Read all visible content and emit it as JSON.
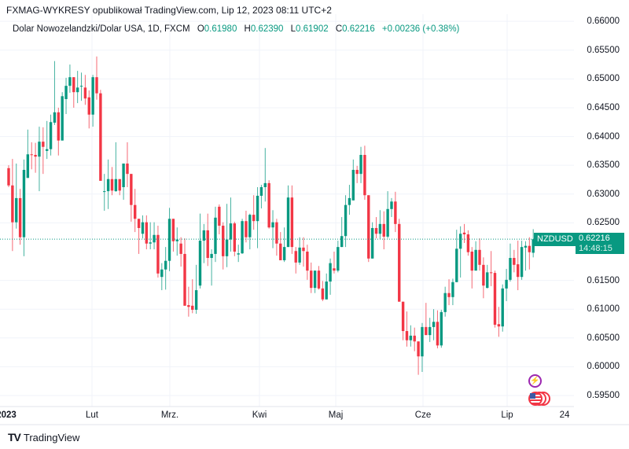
{
  "header": {
    "published": "FXMAG-WYKRESY opublikował TradingView.com, Lip 12, 2023 08:11 UTC+2"
  },
  "legend": {
    "instrument": "Dolar Nowozelandzki/Dolar USA, 1D, FXCM",
    "o_label": "O",
    "o": "0.61980",
    "h_label": "H",
    "h": "0.62390",
    "l_label": "L",
    "l": "0.61902",
    "c_label": "C",
    "c": "0.62216",
    "change": "+0.00236 (+0.38%)"
  },
  "price_label": {
    "symbol": "NZDUSD",
    "price": "0.62216",
    "countdown": "14:48:15"
  },
  "footer": {
    "brand": "TradingView"
  },
  "icons": [
    "tradingview-logo-icon",
    "lightning-event-icon",
    "us-flag-event-icon"
  ],
  "colors": {
    "up": "#089981",
    "down": "#f23645",
    "grid": "#f0f3fa"
  },
  "chart_data": {
    "type": "candlestick",
    "title": "",
    "y_ticks": [
      "0.66000",
      "0.65500",
      "0.65000",
      "0.64500",
      "0.64000",
      "0.63500",
      "0.63000",
      "0.62500",
      "0.61500",
      "0.61000",
      "0.60500",
      "0.60000",
      "0.59500"
    ],
    "x_ticks": [
      "2023",
      "Lut",
      "Mrz.",
      "Kwi",
      "Maj",
      "Cze",
      "Lip",
      "24"
    ],
    "ylim": [
      0.5932,
      0.6637
    ],
    "grid": true,
    "last_price": 0.62216,
    "ohlc": [
      [
        0.6345,
        0.635,
        0.6312,
        0.6315
      ],
      [
        0.6315,
        0.6361,
        0.6201,
        0.6251
      ],
      [
        0.6251,
        0.6353,
        0.624,
        0.6293
      ],
      [
        0.6293,
        0.6309,
        0.6212,
        0.6225
      ],
      [
        0.6225,
        0.636,
        0.6192,
        0.6342
      ],
      [
        0.6328,
        0.6412,
        0.6328,
        0.6369
      ],
      [
        0.6369,
        0.639,
        0.6343,
        0.6368
      ],
      [
        0.6368,
        0.6389,
        0.6337,
        0.6365
      ],
      [
        0.6365,
        0.6417,
        0.6305,
        0.6391
      ],
      [
        0.6391,
        0.6416,
        0.6335,
        0.6382
      ],
      [
        0.6375,
        0.6427,
        0.6361,
        0.6378
      ],
      [
        0.6378,
        0.6438,
        0.6367,
        0.6425
      ],
      [
        0.6424,
        0.6531,
        0.642,
        0.6442
      ],
      [
        0.6442,
        0.645,
        0.6367,
        0.6393
      ],
      [
        0.6393,
        0.6477,
        0.6393,
        0.647
      ],
      [
        0.6465,
        0.6502,
        0.6439,
        0.6488
      ],
      [
        0.6488,
        0.6525,
        0.6476,
        0.6503
      ],
      [
        0.6503,
        0.6503,
        0.645,
        0.6477
      ],
      [
        0.6477,
        0.6514,
        0.6458,
        0.6485
      ],
      [
        0.6487,
        0.6511,
        0.6462,
        0.6488
      ],
      [
        0.6485,
        0.6507,
        0.6455,
        0.6466
      ],
      [
        0.6468,
        0.648,
        0.6414,
        0.6438
      ],
      [
        0.6438,
        0.6507,
        0.6417,
        0.6503
      ],
      [
        0.6503,
        0.6539,
        0.6464,
        0.6475
      ],
      [
        0.6475,
        0.6481,
        0.6323,
        0.6323
      ],
      [
        0.6304,
        0.6335,
        0.6271,
        0.6305
      ],
      [
        0.6305,
        0.636,
        0.6274,
        0.6326
      ],
      [
        0.6326,
        0.6347,
        0.6298,
        0.6306
      ],
      [
        0.6305,
        0.639,
        0.6304,
        0.6326
      ],
      [
        0.6326,
        0.6326,
        0.6298,
        0.6306
      ],
      [
        0.6312,
        0.6353,
        0.629,
        0.6353
      ],
      [
        0.6353,
        0.639,
        0.6312,
        0.6335
      ],
      [
        0.6335,
        0.6335,
        0.6252,
        0.6281
      ],
      [
        0.6281,
        0.6309,
        0.6234,
        0.6257
      ],
      [
        0.6257,
        0.6257,
        0.6196,
        0.6241
      ],
      [
        0.6231,
        0.6263,
        0.6223,
        0.6251
      ],
      [
        0.6251,
        0.6263,
        0.6204,
        0.6214
      ],
      [
        0.6214,
        0.6251,
        0.6204,
        0.6216
      ],
      [
        0.6216,
        0.6251,
        0.6204,
        0.6229
      ],
      [
        0.6229,
        0.6245,
        0.6155,
        0.6162
      ],
      [
        0.6156,
        0.618,
        0.6133,
        0.6169
      ],
      [
        0.6169,
        0.6208,
        0.6134,
        0.6184
      ],
      [
        0.6184,
        0.6276,
        0.6166,
        0.6257
      ],
      [
        0.6257,
        0.6257,
        0.62,
        0.6218
      ],
      [
        0.6218,
        0.6242,
        0.6193,
        0.6221
      ],
      [
        0.6214,
        0.6225,
        0.6174,
        0.6196
      ],
      [
        0.6196,
        0.6223,
        0.6106,
        0.6106
      ],
      [
        0.6107,
        0.6139,
        0.6087,
        0.6104
      ],
      [
        0.6106,
        0.6152,
        0.6093,
        0.6099
      ],
      [
        0.6099,
        0.6177,
        0.6092,
        0.6133
      ],
      [
        0.6141,
        0.6266,
        0.6136,
        0.6219
      ],
      [
        0.6219,
        0.6248,
        0.618,
        0.6237
      ],
      [
        0.6237,
        0.6266,
        0.6175,
        0.6189
      ],
      [
        0.6189,
        0.6204,
        0.6141,
        0.6196
      ],
      [
        0.6196,
        0.6278,
        0.6182,
        0.6259
      ],
      [
        0.6278,
        0.6282,
        0.623,
        0.6245
      ],
      [
        0.6245,
        0.6251,
        0.6169,
        0.6192
      ],
      [
        0.6192,
        0.6283,
        0.6173,
        0.6221
      ],
      [
        0.6221,
        0.6294,
        0.62,
        0.6249
      ],
      [
        0.6249,
        0.6252,
        0.6192,
        0.62
      ],
      [
        0.6195,
        0.6212,
        0.6182,
        0.6197
      ],
      [
        0.6197,
        0.6257,
        0.6196,
        0.6253
      ],
      [
        0.6253,
        0.6271,
        0.6216,
        0.6225
      ],
      [
        0.6225,
        0.6266,
        0.6204,
        0.6264
      ],
      [
        0.6264,
        0.6298,
        0.6238,
        0.6253
      ],
      [
        0.6253,
        0.6312,
        0.6206,
        0.6297
      ],
      [
        0.6297,
        0.6316,
        0.6275,
        0.6312
      ],
      [
        0.6312,
        0.638,
        0.6287,
        0.6319
      ],
      [
        0.6319,
        0.6324,
        0.624,
        0.6242
      ],
      [
        0.6242,
        0.6272,
        0.6206,
        0.6251
      ],
      [
        0.6251,
        0.6257,
        0.6193,
        0.6214
      ],
      [
        0.6214,
        0.6234,
        0.6185,
        0.6185
      ],
      [
        0.6185,
        0.6242,
        0.6182,
        0.6208
      ],
      [
        0.6208,
        0.6315,
        0.6208,
        0.6294
      ],
      [
        0.6294,
        0.6315,
        0.6196,
        0.6208
      ],
      [
        0.6201,
        0.6208,
        0.6162,
        0.6181
      ],
      [
        0.6181,
        0.6225,
        0.6177,
        0.6207
      ],
      [
        0.6207,
        0.6225,
        0.6174,
        0.6201
      ],
      [
        0.62,
        0.6212,
        0.6151,
        0.6167
      ],
      [
        0.6167,
        0.6181,
        0.6128,
        0.6137
      ],
      [
        0.6137,
        0.6167,
        0.6128,
        0.6167
      ],
      [
        0.6167,
        0.6175,
        0.6134,
        0.6136
      ],
      [
        0.6136,
        0.6149,
        0.6114,
        0.6117
      ],
      [
        0.6117,
        0.6162,
        0.6117,
        0.6148
      ],
      [
        0.6148,
        0.6188,
        0.6125,
        0.618
      ],
      [
        0.6171,
        0.62,
        0.6162,
        0.6167
      ],
      [
        0.6167,
        0.6219,
        0.6164,
        0.6208
      ],
      [
        0.6208,
        0.626,
        0.6208,
        0.6227
      ],
      [
        0.6227,
        0.6298,
        0.6208,
        0.6281
      ],
      [
        0.6281,
        0.6316,
        0.6264,
        0.6293
      ],
      [
        0.6289,
        0.636,
        0.6289,
        0.6342
      ],
      [
        0.6342,
        0.6349,
        0.6319,
        0.6335
      ],
      [
        0.6335,
        0.6382,
        0.6319,
        0.6368
      ],
      [
        0.6368,
        0.6384,
        0.629,
        0.6298
      ],
      [
        0.6298,
        0.6298,
        0.6182,
        0.6188
      ],
      [
        0.6188,
        0.6251,
        0.6188,
        0.6241
      ],
      [
        0.6241,
        0.626,
        0.6223,
        0.6231
      ],
      [
        0.6231,
        0.6272,
        0.6222,
        0.6248
      ],
      [
        0.6248,
        0.627,
        0.6204,
        0.6226
      ],
      [
        0.6226,
        0.6305,
        0.6223,
        0.6274
      ],
      [
        0.6274,
        0.6293,
        0.626,
        0.6287
      ],
      [
        0.6287,
        0.6304,
        0.6234,
        0.6248
      ],
      [
        0.6248,
        0.6257,
        0.6113,
        0.6113
      ],
      [
        0.6113,
        0.6113,
        0.6046,
        0.6062
      ],
      [
        0.6062,
        0.6096,
        0.6035,
        0.6046
      ],
      [
        0.6046,
        0.6072,
        0.6035,
        0.6054
      ],
      [
        0.6054,
        0.6068,
        0.6027,
        0.6044
      ],
      [
        0.6044,
        0.6044,
        0.5986,
        0.6018
      ],
      [
        0.6018,
        0.6076,
        0.5991,
        0.6069
      ],
      [
        0.6069,
        0.6111,
        0.6055,
        0.6055
      ],
      [
        0.6055,
        0.6085,
        0.6043,
        0.6069
      ],
      [
        0.6069,
        0.61,
        0.6046,
        0.6078
      ],
      [
        0.6078,
        0.6098,
        0.6032,
        0.6037
      ],
      [
        0.6037,
        0.6099,
        0.6033,
        0.6095
      ],
      [
        0.6095,
        0.6139,
        0.6087,
        0.6128
      ],
      [
        0.6128,
        0.6152,
        0.6107,
        0.6121
      ],
      [
        0.6121,
        0.6153,
        0.6107,
        0.6147
      ],
      [
        0.6147,
        0.6238,
        0.6147,
        0.6205
      ],
      [
        0.6205,
        0.6244,
        0.6155,
        0.6231
      ],
      [
        0.6233,
        0.6248,
        0.6215,
        0.623
      ],
      [
        0.623,
        0.6237,
        0.6193,
        0.6199
      ],
      [
        0.62,
        0.6208,
        0.6136,
        0.6167
      ],
      [
        0.6167,
        0.6218,
        0.6167,
        0.6203
      ],
      [
        0.6203,
        0.6223,
        0.6167,
        0.6177
      ],
      [
        0.6177,
        0.619,
        0.6119,
        0.6141
      ],
      [
        0.6137,
        0.6177,
        0.6136,
        0.6164
      ],
      [
        0.6164,
        0.6201,
        0.614,
        0.6163
      ],
      [
        0.6163,
        0.6167,
        0.6068,
        0.6073
      ],
      [
        0.6074,
        0.6104,
        0.6052,
        0.607
      ],
      [
        0.607,
        0.6143,
        0.6061,
        0.6136
      ],
      [
        0.6136,
        0.617,
        0.6114,
        0.6151
      ],
      [
        0.6151,
        0.6214,
        0.6148,
        0.6189
      ],
      [
        0.6189,
        0.6203,
        0.6164,
        0.6177
      ],
      [
        0.6178,
        0.6219,
        0.6133,
        0.6156
      ],
      [
        0.6156,
        0.6219,
        0.6151,
        0.6208
      ],
      [
        0.6207,
        0.6218,
        0.6167,
        0.621
      ],
      [
        0.621,
        0.6225,
        0.6169,
        0.6199
      ],
      [
        0.6198,
        0.6239,
        0.619,
        0.62216
      ]
    ]
  }
}
